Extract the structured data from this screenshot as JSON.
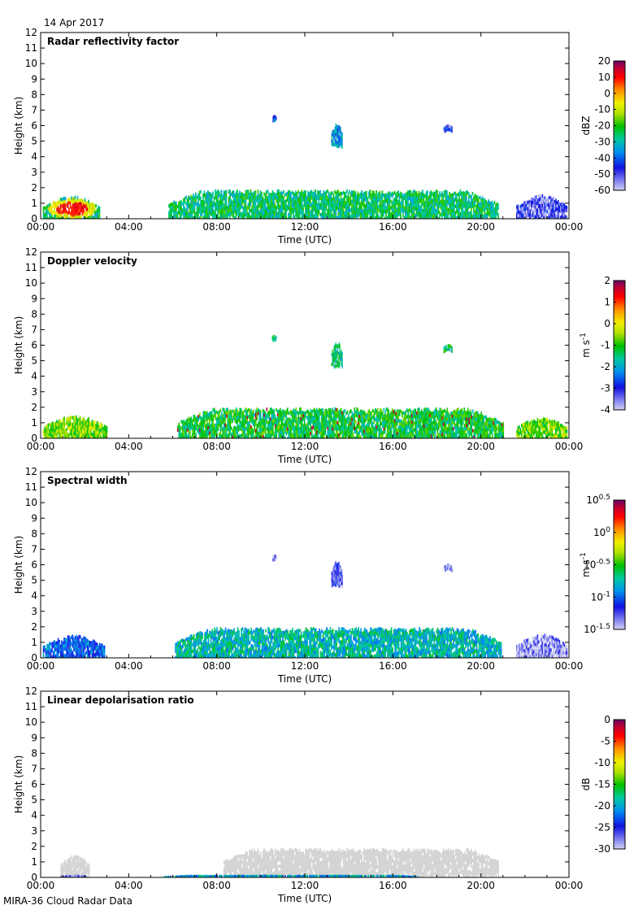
{
  "header": {
    "date": "14 Apr 2017"
  },
  "footer": {
    "caption": "MIRA-36 Cloud Radar Data"
  },
  "chart_data": [
    {
      "type": "heatmap",
      "title": "Radar reflectivity factor",
      "xlabel": "Time (UTC)",
      "ylabel": "Height (km)",
      "xlim": [
        0,
        24
      ],
      "ylim": [
        0,
        12
      ],
      "x_ticks": [
        "00:00",
        "04:00",
        "08:00",
        "12:00",
        "16:00",
        "20:00",
        "00:00"
      ],
      "y_ticks": [
        "0",
        "1",
        "2",
        "3",
        "4",
        "5",
        "6",
        "7",
        "8",
        "9",
        "10",
        "11",
        "12"
      ],
      "colorbar": {
        "label": "dBZ",
        "label_sup": "",
        "scale": "rainbow",
        "range": [
          -60,
          20
        ],
        "ticks": [
          {
            "label": "20",
            "sup": "",
            "v": 20
          },
          {
            "label": "10",
            "sup": "",
            "v": 10
          },
          {
            "label": "0",
            "sup": "",
            "v": 0
          },
          {
            "label": "-10",
            "sup": "",
            "v": -10
          },
          {
            "label": "-20",
            "sup": "",
            "v": -20
          },
          {
            "label": "-30",
            "sup": "",
            "v": -30
          },
          {
            "label": "-40",
            "sup": "",
            "v": -40
          },
          {
            "label": "-50",
            "sup": "",
            "v": -50
          },
          {
            "label": "-60",
            "sup": "",
            "v": -60
          }
        ]
      },
      "features": [
        {
          "name": "early-morning-low-cloud",
          "t0": 0.1,
          "t1": 2.7,
          "h0": 0.0,
          "h1": 1.5,
          "v": -25,
          "v_core": 10
        },
        {
          "name": "main-boundary-layer-cloud",
          "t0": 5.8,
          "t1": 20.8,
          "h0": 0.0,
          "h1": 1.9,
          "v": -25
        },
        {
          "name": "mid-level-streak",
          "t0": 13.2,
          "t1": 13.7,
          "h0": 4.7,
          "h1": 6.3,
          "v": -35
        },
        {
          "name": "small-cell-1030",
          "t0": 10.5,
          "t1": 10.7,
          "h0": 6.4,
          "h1": 6.7,
          "v": -40
        },
        {
          "name": "small-cell-1830",
          "t0": 18.3,
          "t1": 18.7,
          "h0": 5.7,
          "h1": 6.1,
          "v": -45
        },
        {
          "name": "late-low-cloud",
          "t0": 21.6,
          "t1": 23.9,
          "h0": 0.0,
          "h1": 1.6,
          "v": -50
        }
      ]
    },
    {
      "type": "heatmap",
      "title": "Doppler velocity",
      "xlabel": "Time (UTC)",
      "ylabel": "Height (km)",
      "xlim": [
        0,
        24
      ],
      "ylim": [
        0,
        12
      ],
      "x_ticks": [
        "00:00",
        "04:00",
        "08:00",
        "12:00",
        "16:00",
        "20:00",
        "00:00"
      ],
      "y_ticks": [
        "0",
        "1",
        "2",
        "3",
        "4",
        "5",
        "6",
        "7",
        "8",
        "9",
        "10",
        "11",
        "12"
      ],
      "colorbar": {
        "label": "m s",
        "label_sup": "-1",
        "scale": "rainbow",
        "range": [
          -4,
          2
        ],
        "ticks": [
          {
            "label": "2",
            "sup": "",
            "v": 2
          },
          {
            "label": "1",
            "sup": "",
            "v": 1
          },
          {
            "label": "0",
            "sup": "",
            "v": 0
          },
          {
            "label": "-1",
            "sup": "",
            "v": -1
          },
          {
            "label": "-2",
            "sup": "",
            "v": -2
          },
          {
            "label": "-3",
            "sup": "",
            "v": -3
          },
          {
            "label": "-4",
            "sup": "",
            "v": -4
          }
        ]
      },
      "features": [
        {
          "name": "early-morning-low-cloud",
          "t0": 0.1,
          "t1": 3.0,
          "h0": 0.0,
          "h1": 1.5,
          "v": -0.6
        },
        {
          "name": "main-boundary-layer-cloud",
          "t0": 6.2,
          "t1": 21.0,
          "h0": 0.0,
          "h1": 2.0,
          "v": -1.2,
          "streaks": 1.0
        },
        {
          "name": "mid-level-streak",
          "t0": 13.2,
          "t1": 13.7,
          "h0": 4.7,
          "h1": 6.3,
          "v": -1.5
        },
        {
          "name": "small-cell-1030",
          "t0": 10.5,
          "t1": 10.7,
          "h0": 6.4,
          "h1": 6.7,
          "v": -1.5
        },
        {
          "name": "small-cell-1830",
          "t0": 18.3,
          "t1": 18.7,
          "h0": 5.7,
          "h1": 6.1,
          "v": -1.4
        },
        {
          "name": "late-low-cloud",
          "t0": 21.6,
          "t1": 23.9,
          "h0": 0.0,
          "h1": 1.4,
          "v": -0.7
        }
      ]
    },
    {
      "type": "heatmap",
      "title": "Spectral width",
      "xlabel": "Time (UTC)",
      "ylabel": "Height (km)",
      "xlim": [
        0,
        24
      ],
      "ylim": [
        0,
        12
      ],
      "x_ticks": [
        "00:00",
        "04:00",
        "08:00",
        "12:00",
        "16:00",
        "20:00",
        "00:00"
      ],
      "y_ticks": [
        "0",
        "1",
        "2",
        "3",
        "4",
        "5",
        "6",
        "7",
        "8",
        "9",
        "10",
        "11",
        "12"
      ],
      "colorbar": {
        "label": "m s",
        "label_sup": "-1",
        "scale": "rainbow",
        "range": [
          -1.5,
          0.5
        ],
        "ticks": [
          {
            "label": "10",
            "sup": "0.5",
            "v": 0.5
          },
          {
            "label": "10",
            "sup": "0",
            "v": 0
          },
          {
            "label": "10",
            "sup": "-0.5",
            "v": -0.5
          },
          {
            "label": "10",
            "sup": "-1",
            "v": -1
          },
          {
            "label": "10",
            "sup": "-1.5",
            "v": -1.5
          }
        ]
      },
      "features": [
        {
          "name": "early-morning-low-cloud",
          "t0": 0.1,
          "t1": 2.9,
          "h0": 0.0,
          "h1": 1.5,
          "v": -1.0
        },
        {
          "name": "main-boundary-layer-cloud",
          "t0": 6.1,
          "t1": 20.9,
          "h0": 0.0,
          "h1": 2.0,
          "v": -0.75
        },
        {
          "name": "mid-level-streak",
          "t0": 13.2,
          "t1": 13.7,
          "h0": 4.7,
          "h1": 6.3,
          "v": -1.25
        },
        {
          "name": "small-cell-1030",
          "t0": 10.5,
          "t1": 10.7,
          "h0": 6.4,
          "h1": 6.7,
          "v": -1.4
        },
        {
          "name": "small-cell-1830",
          "t0": 18.3,
          "t1": 18.7,
          "h0": 5.7,
          "h1": 6.1,
          "v": -1.4
        },
        {
          "name": "late-low-cloud",
          "t0": 21.6,
          "t1": 23.9,
          "h0": 0.0,
          "h1": 1.6,
          "v": -1.4
        }
      ]
    },
    {
      "type": "heatmap",
      "title": "Linear depolarisation ratio",
      "xlabel": "Time (UTC)",
      "ylabel": "Height (km)",
      "xlim": [
        0,
        24
      ],
      "ylim": [
        0,
        12
      ],
      "x_ticks": [
        "00:00",
        "04:00",
        "08:00",
        "12:00",
        "16:00",
        "20:00",
        "00:00"
      ],
      "y_ticks": [
        "0",
        "1",
        "2",
        "3",
        "4",
        "5",
        "6",
        "7",
        "8",
        "9",
        "10",
        "11",
        "12"
      ],
      "colorbar": {
        "label": "dB",
        "label_sup": "",
        "scale": "rainbow",
        "range": [
          -30,
          0
        ],
        "ticks": [
          {
            "label": "0",
            "sup": "",
            "v": 0
          },
          {
            "label": "-5",
            "sup": "",
            "v": -5
          },
          {
            "label": "-10",
            "sup": "",
            "v": -10
          },
          {
            "label": "-15",
            "sup": "",
            "v": -15
          },
          {
            "label": "-20",
            "sup": "",
            "v": -20
          },
          {
            "label": "-25",
            "sup": "",
            "v": -25
          },
          {
            "label": "-30",
            "sup": "",
            "v": -30
          }
        ]
      },
      "features": [
        {
          "name": "early-morning-low-cloud-no-data",
          "t0": 0.9,
          "t1": 2.2,
          "h0": 0.15,
          "h1": 1.5,
          "v": "nodata"
        },
        {
          "name": "main-cloud-no-data",
          "t0": 8.3,
          "t1": 20.8,
          "h0": 0.15,
          "h1": 1.9,
          "v": "nodata"
        },
        {
          "name": "early-near-surface-band",
          "t0": 0.9,
          "t1": 2.1,
          "h0": 0.0,
          "h1": 0.18,
          "v": -27
        },
        {
          "name": "near-surface-band",
          "t0": 5.6,
          "t1": 17.2,
          "h0": 0.0,
          "h1": 0.18,
          "v": -20
        }
      ]
    }
  ]
}
